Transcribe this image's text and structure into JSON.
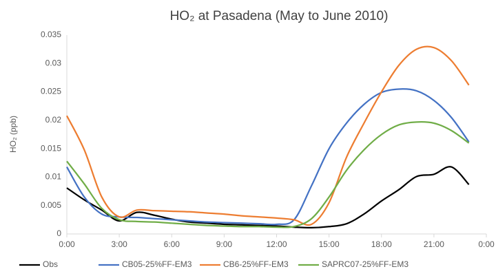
{
  "chart_data": {
    "type": "line",
    "title": "HO₂ at Pasadena (May to June 2010)",
    "y_label": "HO₂ (ppb)",
    "x": [
      0,
      1,
      2,
      3,
      4,
      5,
      6,
      7,
      8,
      9,
      10,
      11,
      12,
      13,
      14,
      15,
      16,
      17,
      18,
      19,
      20,
      21,
      22,
      23
    ],
    "xlim": [
      0,
      24
    ],
    "xticks": [
      {
        "value": 0,
        "label": "0:00"
      },
      {
        "value": 3,
        "label": "3:00"
      },
      {
        "value": 6,
        "label": "6:00"
      },
      {
        "value": 9,
        "label": "9:00"
      },
      {
        "value": 12,
        "label": "12:00"
      },
      {
        "value": 15,
        "label": "15:00"
      },
      {
        "value": 18,
        "label": "18:00"
      },
      {
        "value": 21,
        "label": "21:00"
      },
      {
        "value": 24,
        "label": "0:00"
      }
    ],
    "ylim": [
      0,
      0.035
    ],
    "yticks": [
      0,
      0.005,
      0.01,
      0.015,
      0.02,
      0.025,
      0.03,
      0.035
    ],
    "legend": "bottom",
    "series": [
      {
        "name": "Obs",
        "color": "#000000",
        "values": [
          0.0081,
          0.006,
          0.0042,
          0.0023,
          0.0038,
          0.0033,
          0.0026,
          0.0021,
          0.0019,
          0.0017,
          0.0016,
          0.0015,
          0.0014,
          0.0012,
          0.0011,
          0.0013,
          0.0018,
          0.0035,
          0.0058,
          0.0078,
          0.0101,
          0.0105,
          0.0118,
          0.0087
        ]
      },
      {
        "name": "CB05-25%FF-EM3",
        "color": "#4472c4",
        "values": [
          0.0118,
          0.0065,
          0.0035,
          0.003,
          0.0029,
          0.0027,
          0.0025,
          0.0023,
          0.0021,
          0.002,
          0.0019,
          0.0018,
          0.0017,
          0.0025,
          0.0085,
          0.015,
          0.0195,
          0.0228,
          0.0249,
          0.0255,
          0.0252,
          0.0235,
          0.0205,
          0.0162
        ]
      },
      {
        "name": "CB6-25%FF-EM3",
        "color": "#ed7d31",
        "values": [
          0.0208,
          0.0148,
          0.0065,
          0.003,
          0.0042,
          0.0041,
          0.004,
          0.0039,
          0.0037,
          0.0035,
          0.0032,
          0.003,
          0.0028,
          0.0025,
          0.0017,
          0.0055,
          0.0135,
          0.0195,
          0.025,
          0.0297,
          0.0325,
          0.0328,
          0.0305,
          0.0262
        ]
      },
      {
        "name": "SAPRC07-25%FF-EM3",
        "color": "#70ad47",
        "values": [
          0.0128,
          0.0088,
          0.0045,
          0.0025,
          0.0022,
          0.0021,
          0.0019,
          0.0017,
          0.0015,
          0.0014,
          0.0013,
          0.0013,
          0.0012,
          0.0013,
          0.0027,
          0.0065,
          0.0112,
          0.0148,
          0.0175,
          0.0192,
          0.0197,
          0.0195,
          0.0182,
          0.016
        ]
      }
    ]
  }
}
